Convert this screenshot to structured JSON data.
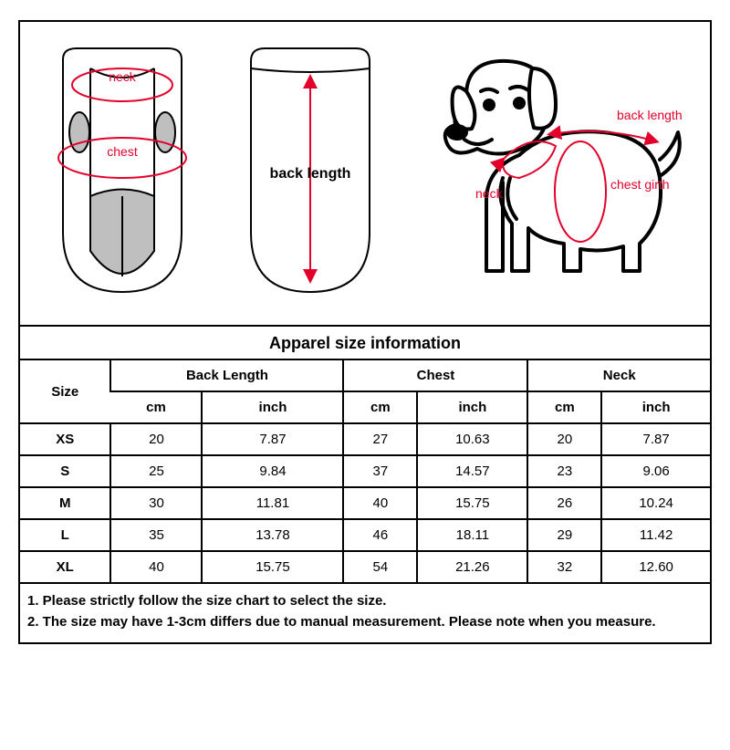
{
  "diagram_labels": {
    "vest_neck": "neck",
    "vest_chest": "chest",
    "back_length": "back length",
    "dog_neck": "neck",
    "dog_back_length": "back length",
    "dog_chest_girth": "chest girth"
  },
  "diagram_style": {
    "outline_color": "#000000",
    "outline_width": 2,
    "arrow_color": "#e2002b",
    "arrow_width": 2,
    "fill_gray": "#bfbfbf",
    "label_color": "#e2002b",
    "label_font_size": 14,
    "dog_outline_width": 3
  },
  "table": {
    "title": "Apparel size  information",
    "title_fontsize": 18,
    "header_size": "Size",
    "groups": [
      "Back Length",
      "Chest",
      "Neck"
    ],
    "unit_cm": "cm",
    "unit_inch": "inch",
    "rows": [
      {
        "size": "XS",
        "back_cm": "20",
        "back_in": "7.87",
        "chest_cm": "27",
        "chest_in": "10.63",
        "neck_cm": "20",
        "neck_in": "7.87"
      },
      {
        "size": "S",
        "back_cm": "25",
        "back_in": "9.84",
        "chest_cm": "37",
        "chest_in": "14.57",
        "neck_cm": "23",
        "neck_in": "9.06"
      },
      {
        "size": "M",
        "back_cm": "30",
        "back_in": "11.81",
        "chest_cm": "40",
        "chest_in": "15.75",
        "neck_cm": "26",
        "neck_in": "10.24"
      },
      {
        "size": "L",
        "back_cm": "35",
        "back_in": "13.78",
        "chest_cm": "46",
        "chest_in": "18.11",
        "neck_cm": "29",
        "neck_in": "11.42"
      },
      {
        "size": "XL",
        "back_cm": "40",
        "back_in": "15.75",
        "chest_cm": "54",
        "chest_in": "21.26",
        "neck_cm": "32",
        "neck_in": "12.60"
      }
    ],
    "cell_fontsize": 15,
    "border_color": "#000000"
  },
  "notes": {
    "line1": "1. Please strictly follow the size chart  to select the size.",
    "line2": "2. The size may have 1-3cm differs due to manual measurement. Please note when you measure.",
    "fontsize": 15,
    "weight": "bold"
  }
}
